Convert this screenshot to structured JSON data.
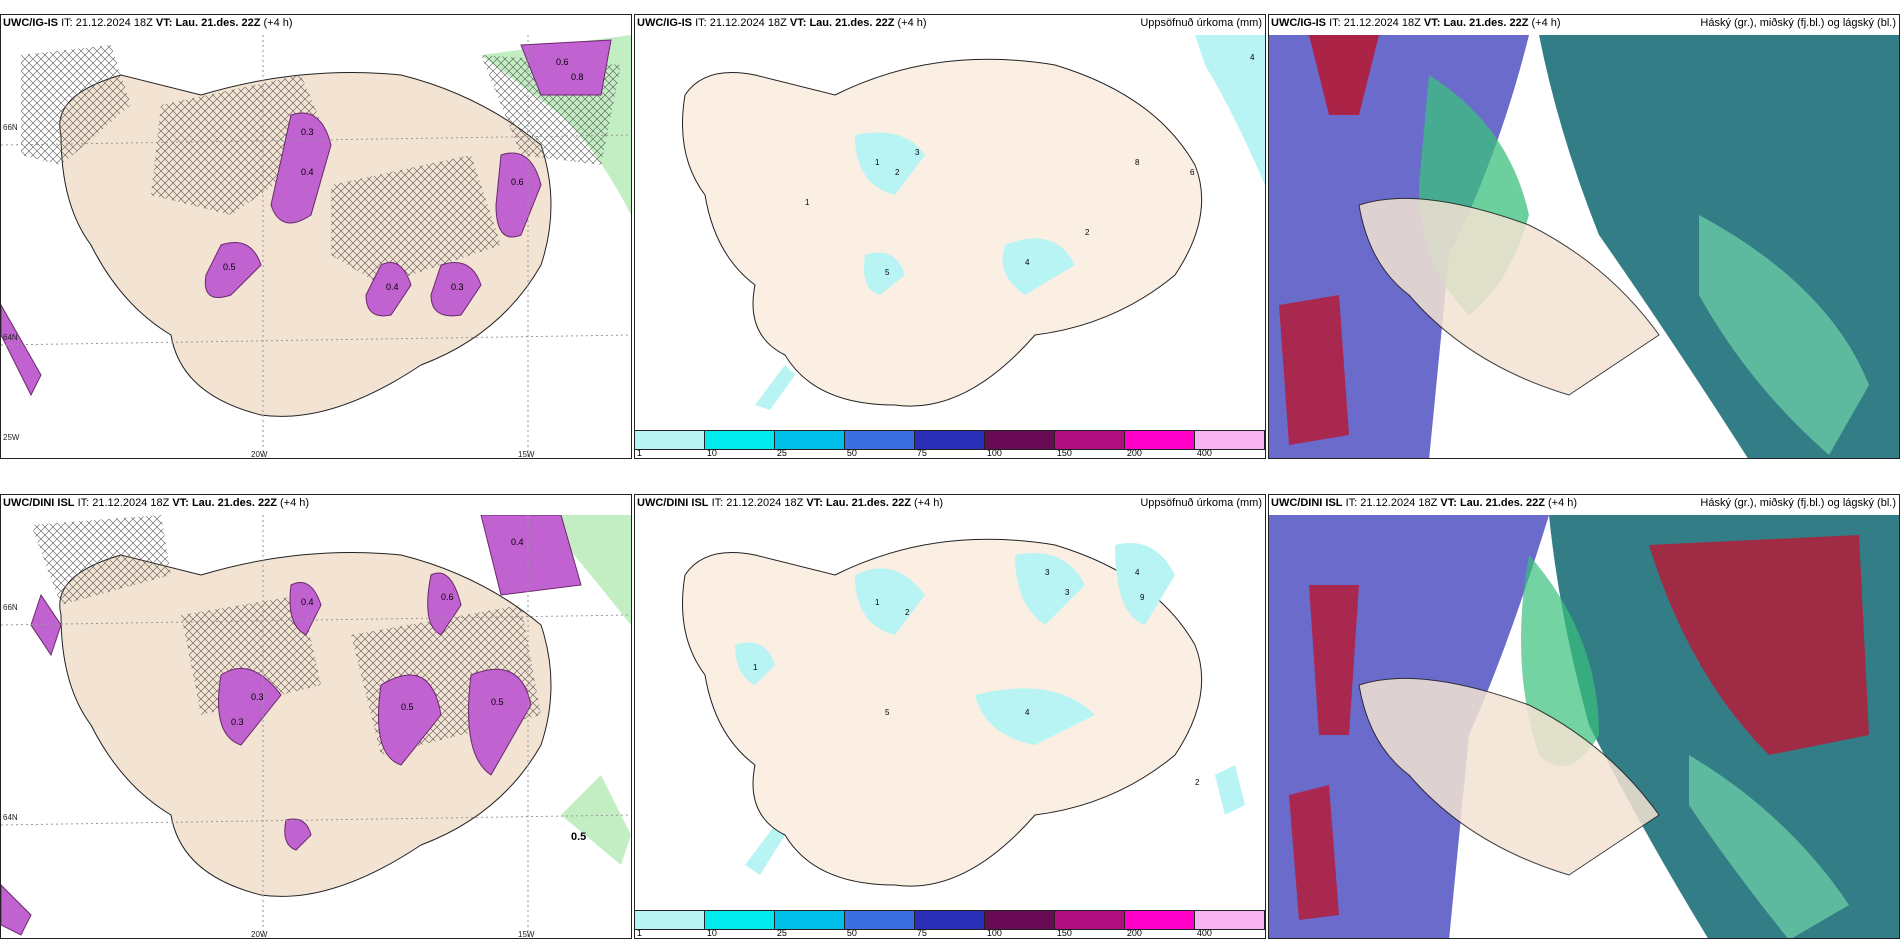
{
  "rows": [
    {
      "panels": [
        {
          "model": "UWC/IG-IS",
          "it_label": "IT:",
          "it_value": "21.12.2024 18Z",
          "vt_label": "VT:",
          "vt_value": "Lau. 21.des. 22Z",
          "lead": "(+4 h)",
          "right_title": ""
        },
        {
          "model": "UWC/IG-IS",
          "it_label": "IT:",
          "it_value": "21.12.2024 18Z",
          "vt_label": "VT:",
          "vt_value": "Lau. 21.des. 22Z",
          "lead": "(+4 h)",
          "right_title": "Uppsöfnuð úrkoma (mm)"
        },
        {
          "model": "UWC/IG-IS",
          "it_label": "IT:",
          "it_value": "21.12.2024 18Z",
          "vt_label": "VT:",
          "vt_value": "Lau. 21.des. 22Z",
          "lead": "(+4 h)",
          "right_title": "Háský (gr.), miðský (fj.bl.) og lágský (bl.)"
        }
      ]
    },
    {
      "panels": [
        {
          "model": "UWC/DINI ISL",
          "it_label": "IT:",
          "it_value": "21.12.2024 18Z",
          "vt_label": "VT:",
          "vt_value": "Lau. 21.des. 22Z",
          "lead": "(+4 h)",
          "right_title": ""
        },
        {
          "model": "UWC/DINI ISL",
          "it_label": "IT:",
          "it_value": "21.12.2024 18Z",
          "vt_label": "VT:",
          "vt_value": "Lau. 21.des. 22Z",
          "lead": "(+4 h)",
          "right_title": "Uppsöfnuð úrkoma (mm)"
        },
        {
          "model": "UWC/DINI ISL",
          "it_label": "IT:",
          "it_value": "21.12.2024 18Z",
          "vt_label": "VT:",
          "vt_value": "Lau. 21.des. 22Z",
          "lead": "(+4 h)",
          "right_title": "Háský (gr.), miðský (fj.bl.) og lágský (bl.)"
        }
      ]
    }
  ],
  "axis_labels": {
    "lon_20w": "20W",
    "lon_15w": "15W",
    "lon_25w": "25W",
    "lat_66n": "66N",
    "lat_64n": "64N"
  },
  "precip_legend": {
    "ticks": [
      "1",
      "10",
      "25",
      "50",
      "75",
      "100",
      "150",
      "200",
      "400"
    ],
    "colors": [
      "#b8f4f4",
      "#00eaf0",
      "#00bfea",
      "#3b6fe0",
      "#2a2fb8",
      "#6a0a55",
      "#b0107f",
      "#ff00c8",
      "#f7b3f0"
    ]
  },
  "snow_labels_top": [
    "0.3",
    "0.4",
    "0.5",
    "0.6",
    "0.3",
    "0.4",
    "0.6",
    "0.8"
  ],
  "snow_labels_bottom": [
    "0.3",
    "0.4",
    "0.5",
    "0.6",
    "0.5",
    "0.3",
    "0.4",
    "0.5"
  ],
  "precip_labels_top": [
    "1",
    "2",
    "3",
    "4",
    "5",
    "6",
    "8",
    "2",
    "1",
    "4"
  ],
  "precip_labels_bottom": [
    "1",
    "2",
    "3",
    "4",
    "5",
    "9",
    "2",
    "1",
    "4",
    "3"
  ],
  "colors": {
    "land": "#f3e3d3",
    "snow": "#c062d0",
    "snowdark": "#6a2a6a",
    "green": "#9be39b",
    "ice": "#b8f4f4"
  }
}
